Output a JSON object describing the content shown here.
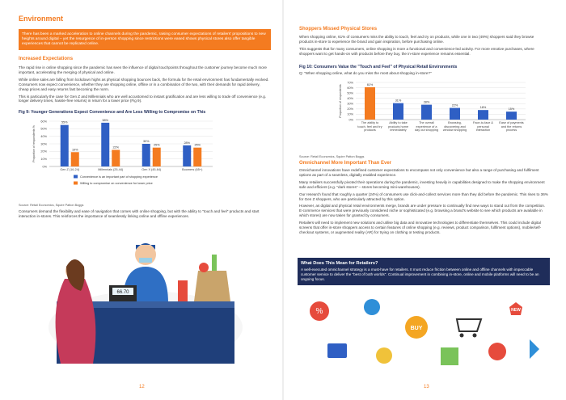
{
  "left_page": {
    "title": "Environment",
    "intro": "There has been a marked acceleration to online channels during the pandemic, raising consumer expectations of retailers' propositions to new heights around digital – yet the resurgence of in-person shopping since restrictions were eased shows physical stores also offer tangible experiences that cannot be replicated online.",
    "heading": "Increased Expectations",
    "paragraphs": [
      "The rapid rise in online shopping since the pandemic has seen the influence of digital touchpoints throughout the customer journey become much more important, accelerating the merging of physical and online.",
      "While online sales are falling from lockdown highs as physical shopping bounces back, the formula for the retail environment has fundamentally evolved. Consumers now expect convenience, whether they are shopping online, offline or in a combination of the two, with their demands for rapid delivery, cheap prices and easy returns fast becoming the norm.",
      "This is particularly the case for Gen Z and Millennials who are well accustomed to instant gratification and are less willing to trade off convenience (e.g. longer delivery times, hassle-free returns) in return for a lower price (Fig 9)."
    ],
    "closing": "Consumers demand the flexibility and ease of navigation that comes with online shopping, but with the ability to \"touch and feel\" products and start interaction in-stores. This reinforces the importance of seamlessly linking online and offline experiences.",
    "illustration_price": "66.70",
    "page_number": "12"
  },
  "right_page": {
    "heading": "Shoppers Missed Physical Stores",
    "paragraphs": [
      "When shopping online, 61% of consumers miss the ability to touch, feel and try on products, while one in two (49%) shoppers said they browse products in-store to experience the brand and gain inspiration, before purchasing online.",
      "This suggests that for many consumers, online shopping is more a functional and convenience-led activity. For more emotive purchases, where shoppers want to get hands-on with products before they buy, the in-store experience remains essential."
    ],
    "heading2": "Omnichannel More Important Than Ever",
    "paragraphs2": [
      "Omnichannel innovations have redefined customer expectations to encompass not only convenience but also a range of purchasing and fulfilment options as part of a seamless, digitally enabled experience.",
      "Many retailers successfully pivoted their operations during the pandemic, investing heavily in capabilities designed to make the shopping environment safe and efficient (e.g. \"dark stores\" – stores becoming mini-warehouses).",
      "Our research found that roughly a quarter (24%) of consumers use click-and-collect services more than they did before the pandemic. This rises to 36% for Gen Z shoppers, who are particularly attracted by this option.",
      "However, as digital and physical retail environments merge, brands are under pressure to continually find new ways to stand out from the competition. E-commerce services that were previously considered niche or sophisticated (e.g. browsing a brand's website to see which products are available in which stores) are now taken for granted by consumers.",
      "Retailers will need to implement new solutions and utilise big data and innovative technologies to differentiate themselves. This could include digital screens that offer in-store shoppers access to certain features of online shopping (e.g. reviews, product comparison, fulfilment options), mobile/self-checkout systems, or augmented reality (AR) for trying on clothing or testing products."
    ],
    "box_title": "What Does This Mean for Retailers?",
    "box_text": "A well-executed omnichannel strategy is a must-have for retailers. It must reduce friction between online and offline channels with impeccable customer service to deliver the \"best of both worlds\". Continual improvement in combining in-store, online and mobile platforms will need to be an ongoing focus.",
    "illustration_labels": [
      "BUY",
      "NEW"
    ],
    "page_number": "13"
  },
  "chart_data": [
    {
      "type": "bar",
      "title": "Fig 9: Younger Generations Expect Convenience and Are Less Willing to Compromise on This",
      "y_label": "Proportion of respondents %",
      "categories": [
        "Gen Z (16-24)",
        "Millennials (25-44)",
        "Gen X (45-64)",
        "Boomers (65+)"
      ],
      "series": [
        {
          "name": "Convenience is an important part of shopping experience",
          "color": "#2f5fc4",
          "values": [
            55,
            58,
            30,
            28
          ],
          "value_labels": [
            "55%",
            "58%",
            "30%",
            "28%"
          ]
        },
        {
          "name": "Willing to compromise on convenience for lower price",
          "color": "#f47b20",
          "values": [
            19,
            22,
            25,
            25
          ],
          "value_labels": [
            "19%",
            "22%",
            "25%",
            "25%"
          ]
        }
      ],
      "ylim": [
        0,
        60
      ],
      "yticks": [
        {
          "value": 0,
          "label": "0%"
        },
        {
          "value": 10,
          "label": "10%"
        },
        {
          "value": 20,
          "label": "20%"
        },
        {
          "value": 30,
          "label": "30%"
        },
        {
          "value": 40,
          "label": "40%"
        },
        {
          "value": 50,
          "label": "50%"
        },
        {
          "value": 60,
          "label": "60%"
        }
      ],
      "grid": true,
      "source": "Source: Retail Economics, Squire Patton Boggs"
    },
    {
      "type": "bar",
      "title": "Fig 10: Consumers Value the \"Touch and Feel\" of Physical Retail Environments",
      "subtitle": "Q: \"When shopping online, what do you miss the most about shopping in-store?\"",
      "y_label": "Proportion of respondents",
      "categories": [
        "The ability to touch, feel and try products",
        "Ability to take products home immediately",
        "The overall experience of a day out shopping",
        "Browsing, discovering and window shopping",
        "Face-to-face & personal interaction",
        "Ease of payments and the returns process"
      ],
      "values": [
        61,
        31,
        28,
        22,
        18,
        15
      ],
      "value_labels": [
        "61%",
        "31%",
        "28%",
        "22%",
        "18%",
        "15%"
      ],
      "colors": [
        "#f47b20",
        "#2f5fc4",
        "#2f5fc4",
        "#2f5fc4",
        "#2f5fc4",
        "#2f5fc4"
      ],
      "ylim": [
        0,
        70
      ],
      "yticks": [
        {
          "value": 0,
          "label": "0%"
        },
        {
          "value": 10,
          "label": "10%"
        },
        {
          "value": 20,
          "label": "20%"
        },
        {
          "value": 30,
          "label": "30%"
        },
        {
          "value": 40,
          "label": "40%"
        },
        {
          "value": 50,
          "label": "50%"
        },
        {
          "value": 60,
          "label": "60%"
        },
        {
          "value": 70,
          "label": "70%"
        }
      ],
      "grid": true,
      "source": "Source: Retail Economics, Squire Patton Boggs"
    }
  ]
}
